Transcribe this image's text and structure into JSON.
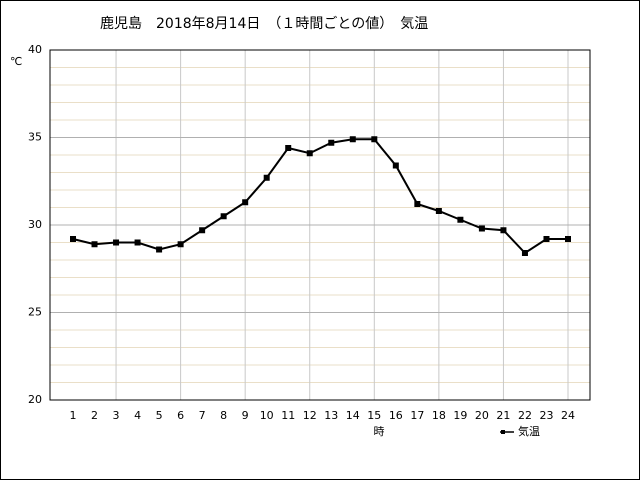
{
  "chart_data": {
    "type": "line",
    "title": "鹿児島　2018年8月14日　（１時間ごとの値）　気温",
    "y_axis_label": "℃",
    "x_axis_label": "時",
    "categories": [
      "1",
      "2",
      "3",
      "4",
      "5",
      "6",
      "7",
      "8",
      "9",
      "10",
      "11",
      "12",
      "13",
      "14",
      "15",
      "16",
      "17",
      "18",
      "19",
      "20",
      "21",
      "22",
      "23",
      "24"
    ],
    "series": [
      {
        "name": "気温",
        "color": "#000000",
        "values": [
          29.2,
          28.9,
          29.0,
          29.0,
          28.6,
          28.9,
          29.7,
          30.5,
          31.3,
          32.7,
          34.4,
          34.1,
          34.7,
          34.9,
          34.9,
          33.4,
          31.2,
          30.8,
          30.3,
          29.8,
          29.7,
          28.4,
          29.2,
          29.2
        ]
      }
    ],
    "ylim": [
      20,
      40
    ],
    "yticks": [
      20,
      25,
      30,
      35,
      40
    ],
    "minor_yticks": [
      21,
      22,
      23,
      24,
      26,
      27,
      28,
      29,
      31,
      32,
      33,
      34,
      36,
      37,
      38,
      39
    ],
    "x_grid_every": 3,
    "grid": true,
    "legend": "bottom-right"
  }
}
